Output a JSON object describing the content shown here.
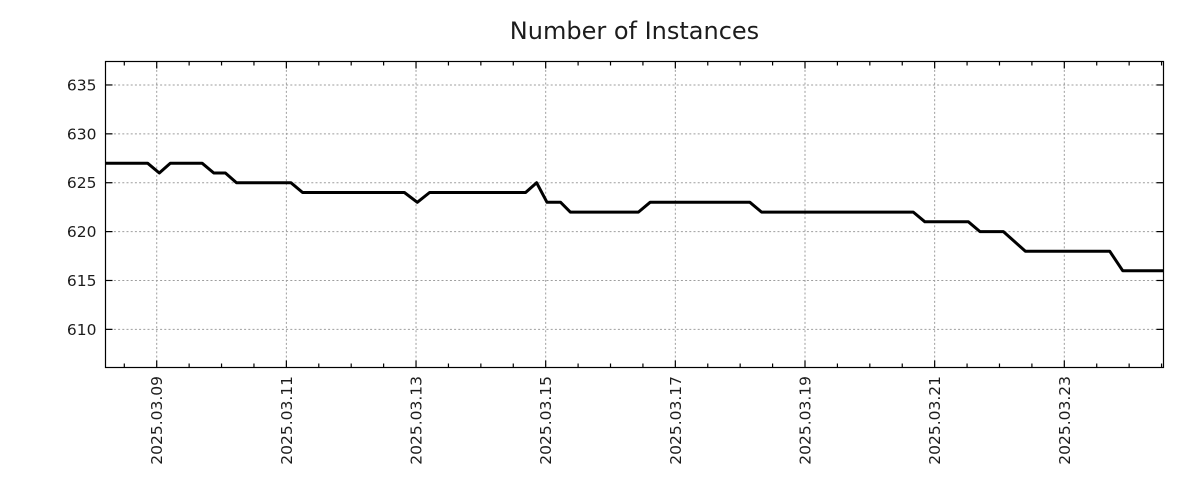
{
  "page": {
    "background": "#ffffff"
  },
  "colors": {
    "line": "#000000",
    "grid": "#9e9e9e",
    "axis": "#000000",
    "text": "#1c1c1c"
  },
  "chart_data": {
    "type": "line",
    "title": "Number of Instances",
    "xlabel": "",
    "ylabel": "",
    "legend": "none",
    "grid": true,
    "x_tick_labels": [
      "2025.03.09",
      "2025.03.11",
      "2025.03.13",
      "2025.03.15",
      "2025.03.17",
      "2025.03.19",
      "2025.03.21",
      "2025.03.23"
    ],
    "x_tick_positions_march_2025_day": [
      9,
      11,
      13,
      15,
      17,
      19,
      21,
      23
    ],
    "minor_x_tick_step_days": 0.5,
    "y_ticks": [
      610,
      615,
      620,
      625,
      630,
      635
    ],
    "xlim": [
      8.21,
      24.53
    ],
    "ylim": [
      606.1,
      637.4
    ],
    "series": [
      {
        "name": "instances",
        "color": "#000000",
        "points_day_value": [
          [
            8.21,
            627
          ],
          [
            8.86,
            627
          ],
          [
            9.04,
            626
          ],
          [
            9.21,
            627
          ],
          [
            9.7,
            627
          ],
          [
            9.88,
            626
          ],
          [
            10.06,
            626
          ],
          [
            10.23,
            625
          ],
          [
            11.07,
            625
          ],
          [
            11.25,
            624
          ],
          [
            12.82,
            624
          ],
          [
            13.02,
            623
          ],
          [
            13.21,
            624
          ],
          [
            14.69,
            624
          ],
          [
            14.86,
            625
          ],
          [
            15.02,
            623
          ],
          [
            15.23,
            623
          ],
          [
            15.38,
            622
          ],
          [
            16.43,
            622
          ],
          [
            16.61,
            623
          ],
          [
            18.15,
            623
          ],
          [
            18.33,
            622
          ],
          [
            20.67,
            622
          ],
          [
            20.85,
            621
          ],
          [
            21.52,
            621
          ],
          [
            21.7,
            620
          ],
          [
            22.06,
            620
          ],
          [
            22.4,
            618
          ],
          [
            23.7,
            618
          ],
          [
            23.9,
            616
          ],
          [
            24.53,
            616
          ]
        ]
      }
    ]
  }
}
